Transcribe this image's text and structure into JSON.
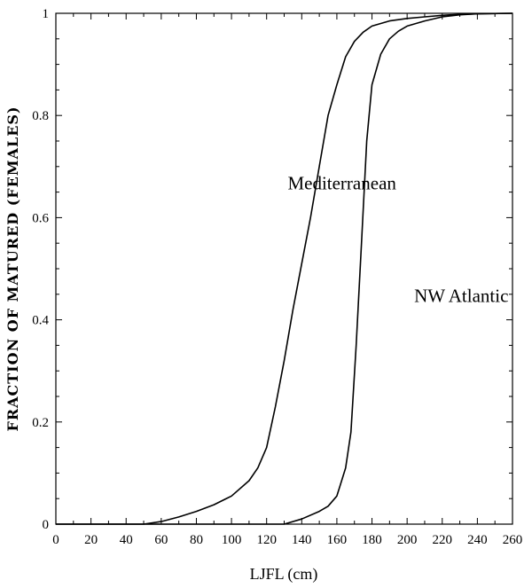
{
  "chart_data": {
    "type": "line",
    "xlabel": "LJFL (cm)",
    "ylabel": "FRACTION OF MATURED (FEMALES)",
    "xlim": [
      0,
      260
    ],
    "ylim": [
      0,
      1
    ],
    "xticks": [
      "0",
      "10",
      "20",
      "30",
      "40",
      "50",
      "60",
      "70",
      "80",
      "90",
      "100",
      "110",
      "120",
      "130",
      "140",
      "150",
      "160",
      "170",
      "180",
      "190",
      "200",
      "210",
      "220",
      "230",
      "240",
      "250",
      "260"
    ],
    "xtick_labels": [
      "0",
      "20",
      "40",
      "60",
      "80",
      "100",
      "120",
      "140",
      "160",
      "180",
      "200",
      "220",
      "240",
      "260"
    ],
    "ytick_labels": [
      "0",
      "0.2",
      "0.4",
      "0.6",
      "0.8",
      "1"
    ],
    "grid": false,
    "series": [
      {
        "name": "Mediterranean",
        "x": [
          0,
          50,
          60,
          70,
          80,
          90,
          100,
          110,
          115,
          120,
          125,
          130,
          135,
          140,
          145,
          150,
          155,
          160,
          165,
          170,
          175,
          180,
          190,
          200,
          210,
          220,
          230,
          240,
          260
        ],
        "y": [
          0,
          0,
          0.005,
          0.014,
          0.025,
          0.038,
          0.055,
          0.085,
          0.11,
          0.15,
          0.23,
          0.32,
          0.42,
          0.51,
          0.6,
          0.7,
          0.8,
          0.86,
          0.915,
          0.945,
          0.963,
          0.975,
          0.985,
          0.99,
          0.993,
          0.996,
          0.998,
          0.999,
          1.0
        ]
      },
      {
        "name": "NW Atlantic",
        "x": [
          0,
          130,
          140,
          150,
          155,
          160,
          165,
          168,
          171,
          174,
          177,
          180,
          185,
          190,
          195,
          200,
          210,
          220,
          230,
          240,
          260
        ],
        "y": [
          0,
          0,
          0.01,
          0.025,
          0.035,
          0.055,
          0.11,
          0.18,
          0.35,
          0.55,
          0.75,
          0.86,
          0.92,
          0.95,
          0.965,
          0.975,
          0.985,
          0.993,
          0.997,
          0.999,
          1.0
        ]
      }
    ],
    "annotations": [
      {
        "text": "Mediterranean",
        "x": 132,
        "y": 0.655
      },
      {
        "text": "NW Atlantic",
        "x": 204,
        "y": 0.435
      }
    ]
  }
}
